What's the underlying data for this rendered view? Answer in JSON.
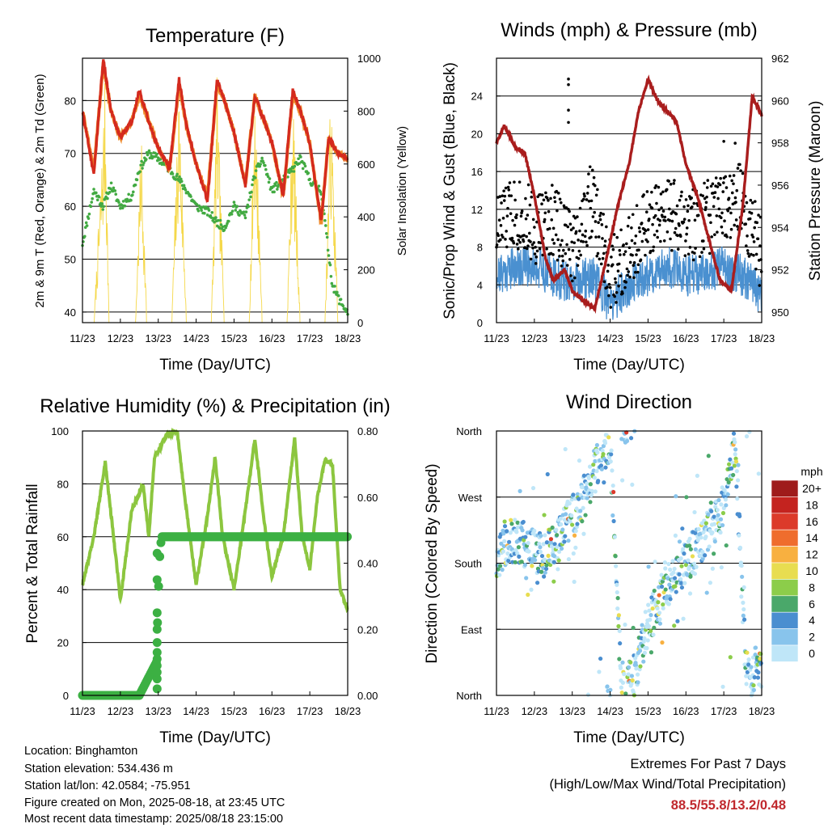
{
  "charts": {
    "temperature": {
      "title": "Temperature (F)",
      "xlabel": "Time (Day/UTC)",
      "ylabel_left": "2m & 9m T (Red, Orange) & 2m Td (Green)",
      "ylabel_right": "Solar Insolation (Yellow)",
      "xticks": [
        "11/23",
        "12/23",
        "13/23",
        "14/23",
        "15/23",
        "16/23",
        "17/23",
        "18/23"
      ],
      "yticks_left": [
        "40",
        "50",
        "60",
        "70",
        "80"
      ],
      "yticks_right": [
        "0",
        "200",
        "400",
        "600",
        "800",
        "1000"
      ]
    },
    "winds": {
      "title": "Winds (mph) & Pressure (mb)",
      "xlabel": "Time (Day/UTC)",
      "ylabel_left": "Sonic/Prop Wind & Gust (Blue, Black)",
      "ylabel_right": "Station Pressure (Maroon)",
      "xticks": [
        "11/23",
        "12/23",
        "13/23",
        "14/23",
        "15/23",
        "16/23",
        "17/23",
        "18/23"
      ],
      "yticks_left": [
        "0",
        "4",
        "8",
        "12",
        "16",
        "20",
        "24"
      ],
      "yticks_right": [
        "950",
        "952",
        "954",
        "956",
        "958",
        "960",
        "962"
      ]
    },
    "humidity": {
      "title": "Relative Humidity (%) & Precipitation (in)",
      "xlabel": "Time (Day/UTC)",
      "ylabel_left": "Percent & Total Rainfall",
      "xticks": [
        "11/23",
        "12/23",
        "13/23",
        "14/23",
        "15/23",
        "16/23",
        "17/23",
        "18/23"
      ],
      "yticks_left": [
        "0",
        "20",
        "40",
        "60",
        "80",
        "100"
      ],
      "yticks_right": [
        "0.00",
        "0.20",
        "0.40",
        "0.60",
        "0.80"
      ]
    },
    "direction": {
      "title": "Wind Direction",
      "xlabel": "Time (Day/UTC)",
      "ylabel_left": "Direction (Colored By Speed)",
      "xticks": [
        "11/23",
        "12/23",
        "13/23",
        "14/23",
        "15/23",
        "16/23",
        "17/23",
        "18/23"
      ],
      "yticks_left": [
        "North",
        "East",
        "South",
        "West",
        "North"
      ],
      "legend_title": "mph",
      "legend_labels": [
        "0",
        "2",
        "4",
        "6",
        "8",
        "10",
        "12",
        "14",
        "16",
        "18",
        "20+"
      ],
      "legend_colors": [
        "#bfe6f8",
        "#88c4ec",
        "#4a8ed0",
        "#4aa86a",
        "#8ccd4a",
        "#e8dd50",
        "#f8b040",
        "#ef6d2d",
        "#dc3a2a",
        "#c4231f",
        "#9f1b1b"
      ]
    }
  },
  "chart_data": [
    {
      "type": "line",
      "title": "Temperature (F)",
      "x_range": [
        "11/23",
        "18/23"
      ],
      "ylim_left": [
        38,
        88
      ],
      "ylim_right": [
        0,
        1000
      ],
      "series": [
        {
          "color": "#d42a1e",
          "x": [
            0,
            0.3,
            0.55,
            0.75,
            1.0,
            1.3,
            1.5,
            1.75,
            2.0,
            2.3,
            2.55,
            2.75,
            3.0,
            3.3,
            3.55,
            3.75,
            4.0,
            4.3,
            4.55,
            4.75,
            5.0,
            5.3,
            5.55,
            5.75,
            6.0,
            6.3,
            6.5,
            6.75,
            7.0
          ],
          "y": [
            78,
            66,
            88,
            78,
            73,
            76,
            82,
            76,
            71,
            67,
            84,
            75,
            68,
            61,
            84,
            80,
            74,
            64,
            81,
            77,
            72,
            62,
            82,
            78,
            72,
            57,
            73,
            70,
            69
          ]
        },
        {
          "color": "#ef8a2a",
          "x": [
            0,
            0.3,
            0.55,
            0.75,
            1.0,
            1.3,
            1.5,
            1.75,
            2.0,
            2.3,
            2.55,
            2.75,
            3.0,
            3.3,
            3.55,
            3.75,
            4.0,
            4.3,
            4.55,
            4.75,
            5.0,
            5.3,
            5.55,
            5.75,
            6.0,
            6.3,
            6.5,
            6.75,
            7.0
          ],
          "y": [
            78,
            67,
            87,
            78,
            73,
            76,
            81,
            76,
            71,
            67,
            83,
            75,
            68,
            62,
            83,
            80,
            74,
            64,
            81,
            77,
            72,
            62,
            81,
            78,
            72,
            57,
            73,
            70,
            69
          ]
        },
        {
          "color": "#42aa42",
          "x": [
            0,
            0.3,
            0.55,
            0.75,
            1.0,
            1.3,
            1.5,
            1.75,
            2.0,
            2.3,
            2.55,
            2.75,
            3.0,
            3.3,
            3.55,
            3.75,
            4.0,
            4.3,
            4.55,
            4.75,
            5.0,
            5.3,
            5.55,
            5.75,
            6.0,
            6.3,
            6.6,
            6.8,
            7.0
          ],
          "y": [
            53,
            63,
            60,
            64,
            60,
            62,
            67,
            70,
            69,
            67,
            65,
            63,
            60,
            59,
            57,
            56,
            60,
            58,
            66,
            69,
            63,
            65,
            67,
            69,
            65,
            63,
            45,
            42,
            40
          ]
        },
        {
          "color": "#f5d84a",
          "x": [
            0,
            0.3,
            0.5,
            0.6,
            0.7,
            1.0,
            1.4,
            1.55,
            1.7,
            2.0,
            2.35,
            2.55,
            2.75,
            3.0,
            3.4,
            3.55,
            3.75,
            4.0,
            4.4,
            4.55,
            4.75,
            5.0,
            5.4,
            5.55,
            5.75,
            6.0,
            6.4,
            6.55,
            6.75,
            7.0
          ],
          "y": [
            0,
            0,
            600,
            950,
            0,
            0,
            0,
            750,
            0,
            0,
            0,
            920,
            0,
            0,
            0,
            930,
            0,
            0,
            0,
            950,
            0,
            0,
            0,
            900,
            0,
            0,
            0,
            900,
            0,
            0
          ]
        }
      ]
    },
    {
      "type": "scatter",
      "title": "Winds (mph) & Pressure (mb)",
      "ylim_left": [
        0,
        28
      ],
      "ylim_right": [
        949.5,
        962
      ],
      "series": [
        {
          "color": "#4a90d0",
          "x": [
            0,
            0.5,
            1.0,
            1.5,
            2.0,
            2.5,
            3.0,
            3.5,
            4.0,
            4.5,
            5.0,
            5.5,
            6.0,
            6.5,
            7.0
          ],
          "y": [
            5,
            6,
            6,
            5,
            4,
            5,
            2,
            4,
            5,
            6,
            5,
            5,
            6,
            5,
            3
          ]
        },
        {
          "color": "#000000",
          "x": [
            0,
            0.5,
            1.0,
            1.5,
            2.0,
            2.5,
            3.0,
            3.5,
            4.0,
            4.5,
            5.0,
            5.5,
            6.0,
            6.5,
            7.0
          ],
          "y": [
            10,
            12,
            10,
            11,
            8,
            13,
            5,
            8,
            10,
            12,
            10,
            11,
            12,
            13,
            7
          ]
        },
        {
          "color": "#a91d1d",
          "x": [
            0,
            0.2,
            0.5,
            0.75,
            1.0,
            1.3,
            1.5,
            1.8,
            2.0,
            2.3,
            2.6,
            2.9,
            3.2,
            3.5,
            3.75,
            4.0,
            4.25,
            4.5,
            4.75,
            5.0,
            5.3,
            5.6,
            5.9,
            6.2,
            6.5,
            6.75,
            7.0
          ],
          "y": [
            958,
            958.8,
            957.8,
            957.5,
            955.5,
            952.5,
            951.5,
            952,
            951,
            950.5,
            950.2,
            952.5,
            955,
            957,
            959.5,
            961,
            960,
            959.5,
            959,
            957,
            955.5,
            953.5,
            951.5,
            951,
            955,
            960.2,
            959.3
          ]
        }
      ]
    },
    {
      "type": "line",
      "title": "Relative Humidity (%) & Precipitation (in)",
      "ylim_left": [
        0,
        100
      ],
      "ylim_right": [
        0,
        0.8
      ],
      "series": [
        {
          "color": "#8cc63f",
          "x": [
            0,
            0.3,
            0.6,
            0.9,
            1.0,
            1.3,
            1.6,
            1.75,
            1.9,
            2.2,
            2.5,
            2.7,
            3.0,
            3.3,
            3.5,
            3.7,
            4.0,
            4.3,
            4.55,
            4.8,
            5.0,
            5.3,
            5.6,
            5.8,
            6.0,
            6.2,
            6.4,
            6.6,
            6.8,
            7.0
          ],
          "y": [
            42,
            60,
            88,
            50,
            36,
            70,
            80,
            60,
            90,
            98,
            100,
            75,
            42,
            68,
            90,
            60,
            40,
            70,
            97,
            65,
            45,
            60,
            97,
            60,
            48,
            75,
            89,
            87,
            40,
            32
          ]
        },
        {
          "color": "#3cb043",
          "x": [
            0,
            0.5,
            1.0,
            1.5,
            1.95,
            2.0,
            2.05,
            2.1,
            2.5,
            3,
            4,
            5,
            6,
            7
          ],
          "y": [
            0,
            0,
            0,
            0,
            0.1,
            0.3,
            0.45,
            0.48,
            0.48,
            0.48,
            0.48,
            0.48,
            0.48,
            0.48
          ]
        }
      ]
    },
    {
      "type": "scatter",
      "title": "Wind Direction",
      "series": [
        {
          "name": "direction",
          "x": [
            0,
            0.3,
            0.6,
            0.9,
            1.2,
            1.5,
            1.8,
            2.1,
            2.4,
            2.7,
            3.0,
            3.3,
            3.6,
            3.9,
            4.2,
            4.5,
            4.8,
            5.1,
            5.4,
            5.7,
            6.0,
            6.3,
            6.6,
            6.9
          ],
          "y": [
            180,
            210,
            210,
            200,
            190,
            200,
            230,
            250,
            280,
            320,
            350,
            10,
            20,
            80,
            120,
            150,
            170,
            190,
            210,
            230,
            260,
            340,
            20,
            40
          ]
        }
      ]
    }
  ],
  "info": {
    "location": "Location: Binghamton",
    "elevation": "Station elevation: 534.436 m",
    "latlon": "Station lat/lon: 42.0584; -75.951",
    "created": "Figure created on Mon, 2025-08-18, at 23:45 UTC",
    "recent": "Most recent data timestamp: 2025/08/18 23:15:00"
  },
  "extremes": {
    "heading": "Extremes For Past 7 Days",
    "subheading": "(High/Low/Max Wind/Total Precipitation)",
    "values": "88.5/55.8/13.2/0.48"
  }
}
